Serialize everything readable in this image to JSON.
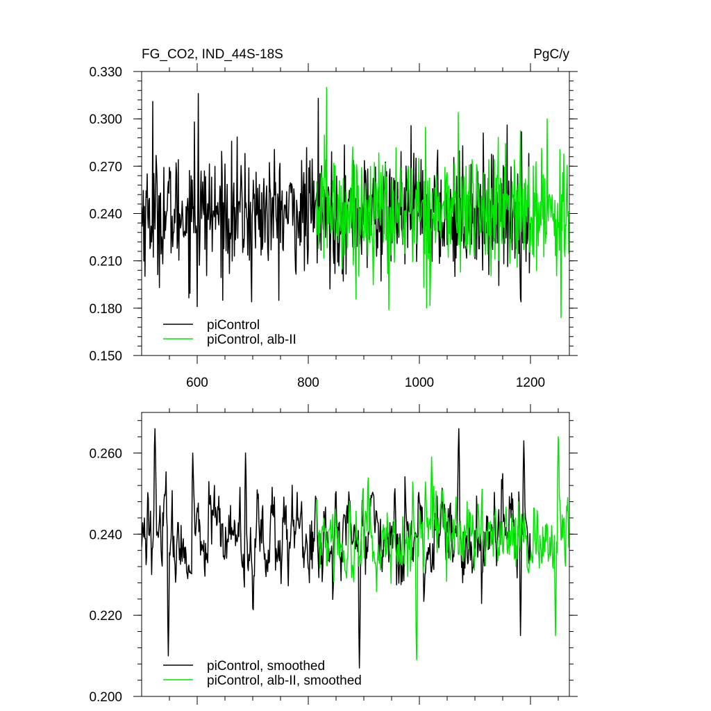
{
  "header": {
    "title": "FG_CO2, IND_44S-18S",
    "units": "PgC/y"
  },
  "colors": {
    "piControl": "#000000",
    "alb_II": "#00e600",
    "axis": "#000000"
  },
  "chart_data": [
    {
      "type": "line",
      "panel": "top",
      "xlim": [
        500,
        1270
      ],
      "ylim": [
        0.15,
        0.33
      ],
      "x_ticks": [
        600,
        800,
        1000,
        1200
      ],
      "x_tick_labels": [
        "600",
        "800",
        "1000",
        "1200"
      ],
      "y_ticks": [
        0.15,
        0.18,
        0.21,
        0.24,
        0.27,
        0.3,
        0.33
      ],
      "y_tick_labels": [
        "0.150",
        "0.180",
        "0.210",
        "0.240",
        "0.270",
        "0.300",
        "0.330"
      ],
      "legend_position": "bottom-left",
      "grid": false,
      "series": [
        {
          "name": "piControl",
          "color": "#000000",
          "x_range": [
            500,
            1200
          ],
          "summary": {
            "mean": 0.24,
            "min": 0.181,
            "max": 0.316
          },
          "peaks": [
            [
              520,
              0.311
            ],
            [
              595,
              0.298
            ],
            [
              602,
              0.316
            ],
            [
              698,
              0.184
            ],
            [
              600,
              0.181
            ],
            [
              818,
              0.313
            ],
            [
              1183,
              0.184
            ]
          ]
        },
        {
          "name": "piControl, alb-II",
          "color": "#00e600",
          "x_range": [
            815,
            1270
          ],
          "summary": {
            "mean": 0.242,
            "min": 0.174,
            "max": 0.32
          },
          "peaks": [
            [
              833,
              0.32
            ],
            [
              945,
              0.179
            ],
            [
              1070,
              0.304
            ],
            [
              1255,
              0.174
            ],
            [
              1230,
              0.3
            ]
          ]
        }
      ]
    },
    {
      "type": "line",
      "panel": "bottom",
      "xlim": [
        500,
        1270
      ],
      "ylim": [
        0.2,
        0.27
      ],
      "x_ticks": [
        600,
        800,
        1000,
        1200
      ],
      "y_ticks": [
        0.2,
        0.22,
        0.24,
        0.26
      ],
      "y_tick_labels": [
        "0.200",
        "0.220",
        "0.240",
        "0.260"
      ],
      "legend_position": "bottom-left",
      "grid": false,
      "series": [
        {
          "name": "piControl, smoothed",
          "color": "#000000",
          "x_range": [
            500,
            1200
          ],
          "summary": {
            "mean": 0.239,
            "min": 0.207,
            "max": 0.266
          },
          "peaks": [
            [
              524,
              0.266
            ],
            [
              548,
              0.21
            ],
            [
              592,
              0.26
            ],
            [
              687,
              0.26
            ],
            [
              892,
              0.207
            ],
            [
              1071,
              0.266
            ],
            [
              1182,
              0.215
            ],
            [
              1188,
              0.263
            ]
          ]
        },
        {
          "name": "piControl, alb-II, smoothed",
          "color": "#00e600",
          "x_range": [
            815,
            1270
          ],
          "summary": {
            "mean": 0.24,
            "min": 0.209,
            "max": 0.264
          },
          "peaks": [
            [
              995,
              0.209
            ],
            [
              1022,
              0.259
            ],
            [
              1245,
              0.215
            ],
            [
              1250,
              0.264
            ]
          ]
        }
      ]
    }
  ]
}
